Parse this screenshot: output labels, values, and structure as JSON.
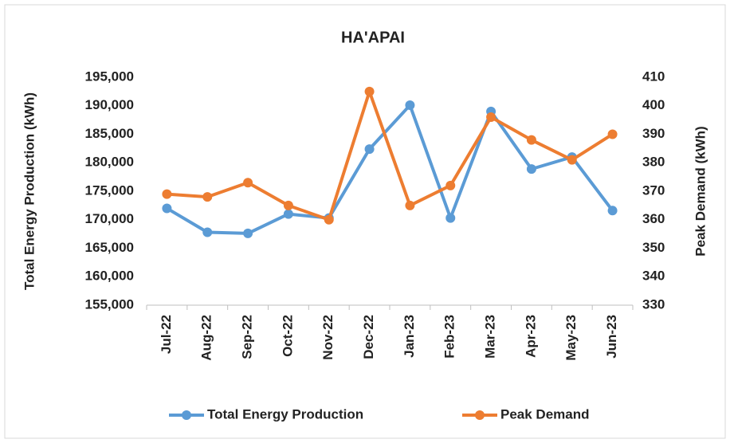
{
  "chart_data": {
    "type": "line",
    "title": "HA'APAI",
    "categories": [
      "Jul-22",
      "Aug-22",
      "Sep-22",
      "Oct-22",
      "Nov-22",
      "Dec-22",
      "Jan-23",
      "Feb-23",
      "Mar-23",
      "Apr-23",
      "May-23",
      "Jun-23"
    ],
    "series": [
      {
        "name": "Total Energy Production",
        "color": "#5b9bd5",
        "values": [
          172000,
          167800,
          167600,
          171000,
          170300,
          182400,
          190100,
          170300,
          189000,
          178900,
          181000,
          171600
        ]
      },
      {
        "name": "Peak Demand",
        "color": "#ed7d31",
        "axis": "y2",
        "values": [
          369,
          368,
          373,
          365,
          360,
          405,
          365,
          372,
          396,
          388,
          381,
          390
        ]
      }
    ],
    "ylabel": "Total Energy Production (kWh)",
    "y2label": "Peak Demand (kWh)",
    "ylim": [
      155000,
      195000
    ],
    "yticks": [
      {
        "value": 155000,
        "label": "155,000"
      },
      {
        "value": 160000,
        "label": "160,000"
      },
      {
        "value": 165000,
        "label": "165,000"
      },
      {
        "value": 170000,
        "label": "170,000"
      },
      {
        "value": 175000,
        "label": "175,000"
      },
      {
        "value": 180000,
        "label": "180,000"
      },
      {
        "value": 185000,
        "label": "185,000"
      },
      {
        "value": 190000,
        "label": "190,000"
      },
      {
        "value": 195000,
        "label": "195,000"
      }
    ],
    "y2lim": [
      330,
      410
    ],
    "y2ticks": [
      330,
      340,
      350,
      360,
      370,
      380,
      390,
      400,
      410
    ],
    "legend": "bottom"
  }
}
